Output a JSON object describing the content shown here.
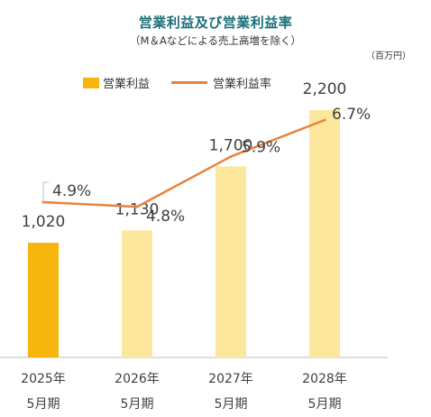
{
  "header": {
    "title": "営業利益及び営業利益率",
    "subtitle": "（M＆Aなどによる売上高増を除く）",
    "unit": "（百万円）"
  },
  "legend": {
    "bar_label": "営業利益",
    "line_label": "営業利益率"
  },
  "colors": {
    "title": "#1a6f78",
    "bar_actual": "#f6b60e",
    "bar_forecast": "#fde79d",
    "line": "#e8823e",
    "axis": "#bfbfbf",
    "text": "#404040"
  },
  "chart_data": {
    "type": "bar",
    "title": "営業利益及び営業利益率",
    "subtitle": "（M＆Aなどによる売上高増を除く）",
    "categories": [
      [
        "2025年",
        "5月期"
      ],
      [
        "2026年",
        "5月期"
      ],
      [
        "2027年",
        "5月期"
      ],
      [
        "2028年",
        "5月期"
      ]
    ],
    "series": [
      {
        "name": "営業利益",
        "type": "bar",
        "values": [
          1020,
          1130,
          1700,
          2200
        ],
        "labels": [
          "1,020",
          "1,130",
          "1,700",
          "2,200"
        ]
      },
      {
        "name": "営業利益率",
        "type": "line",
        "values": [
          4.9,
          4.8,
          5.9,
          6.7
        ],
        "labels": [
          "4.9%",
          "4.8%",
          "5.9%",
          "6.7%"
        ]
      }
    ],
    "ylim_bar": [
      0,
      2200
    ],
    "ylim_line": [
      1.5,
      6.7
    ],
    "grid": false,
    "legend_position": "top-left"
  }
}
